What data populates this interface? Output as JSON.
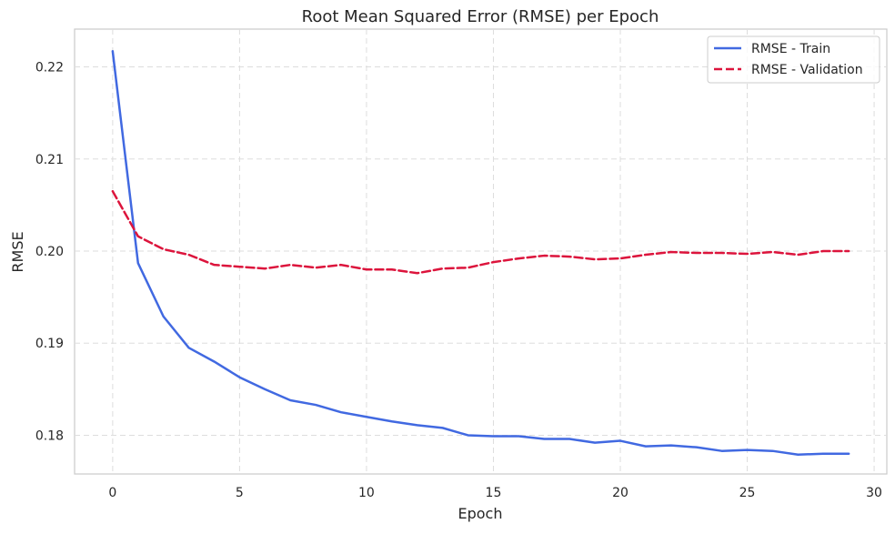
{
  "chart_data": {
    "type": "line",
    "title": "Root Mean Squared Error (RMSE) per Epoch",
    "xlabel": "Epoch",
    "ylabel": "RMSE",
    "xlim": [
      -1.5,
      30.5
    ],
    "ylim": [
      0.1758,
      0.2241
    ],
    "xticks": [
      0,
      5,
      10,
      15,
      20,
      25,
      30
    ],
    "xtick_labels": [
      "0",
      "5",
      "10",
      "15",
      "20",
      "25",
      "30"
    ],
    "yticks": [
      0.18,
      0.19,
      0.2,
      0.21,
      0.22
    ],
    "ytick_labels": [
      "0.18",
      "0.19",
      "0.20",
      "0.21",
      "0.22"
    ],
    "grid": true,
    "legend_position": "top-right",
    "x": [
      0,
      1,
      2,
      3,
      4,
      5,
      6,
      7,
      8,
      9,
      10,
      11,
      12,
      13,
      14,
      15,
      16,
      17,
      18,
      19,
      20,
      21,
      22,
      23,
      24,
      25,
      26,
      27,
      28,
      29
    ],
    "series": [
      {
        "name": "RMSE - Train",
        "color": "#4169e1",
        "style": "solid",
        "values": [
          0.2217,
          0.1987,
          0.1929,
          0.1895,
          0.188,
          0.1863,
          0.185,
          0.1838,
          0.1833,
          0.1825,
          0.182,
          0.1815,
          0.1811,
          0.1808,
          0.18,
          0.1799,
          0.1799,
          0.1796,
          0.1796,
          0.1792,
          0.1794,
          0.1788,
          0.1789,
          0.1787,
          0.1783,
          0.1784,
          0.1783,
          0.1779,
          0.178,
          0.178
        ]
      },
      {
        "name": "RMSE - Validation",
        "color": "#dc143c",
        "style": "dashed",
        "values": [
          0.2065,
          0.2016,
          0.2002,
          0.1996,
          0.1985,
          0.1983,
          0.1981,
          0.1985,
          0.1982,
          0.1985,
          0.198,
          0.198,
          0.1976,
          0.1981,
          0.1982,
          0.1988,
          0.1992,
          0.1995,
          0.1994,
          0.1991,
          0.1992,
          0.1996,
          0.1999,
          0.1998,
          0.1998,
          0.1997,
          0.1999,
          0.1996,
          0.2,
          0.2
        ]
      }
    ]
  }
}
